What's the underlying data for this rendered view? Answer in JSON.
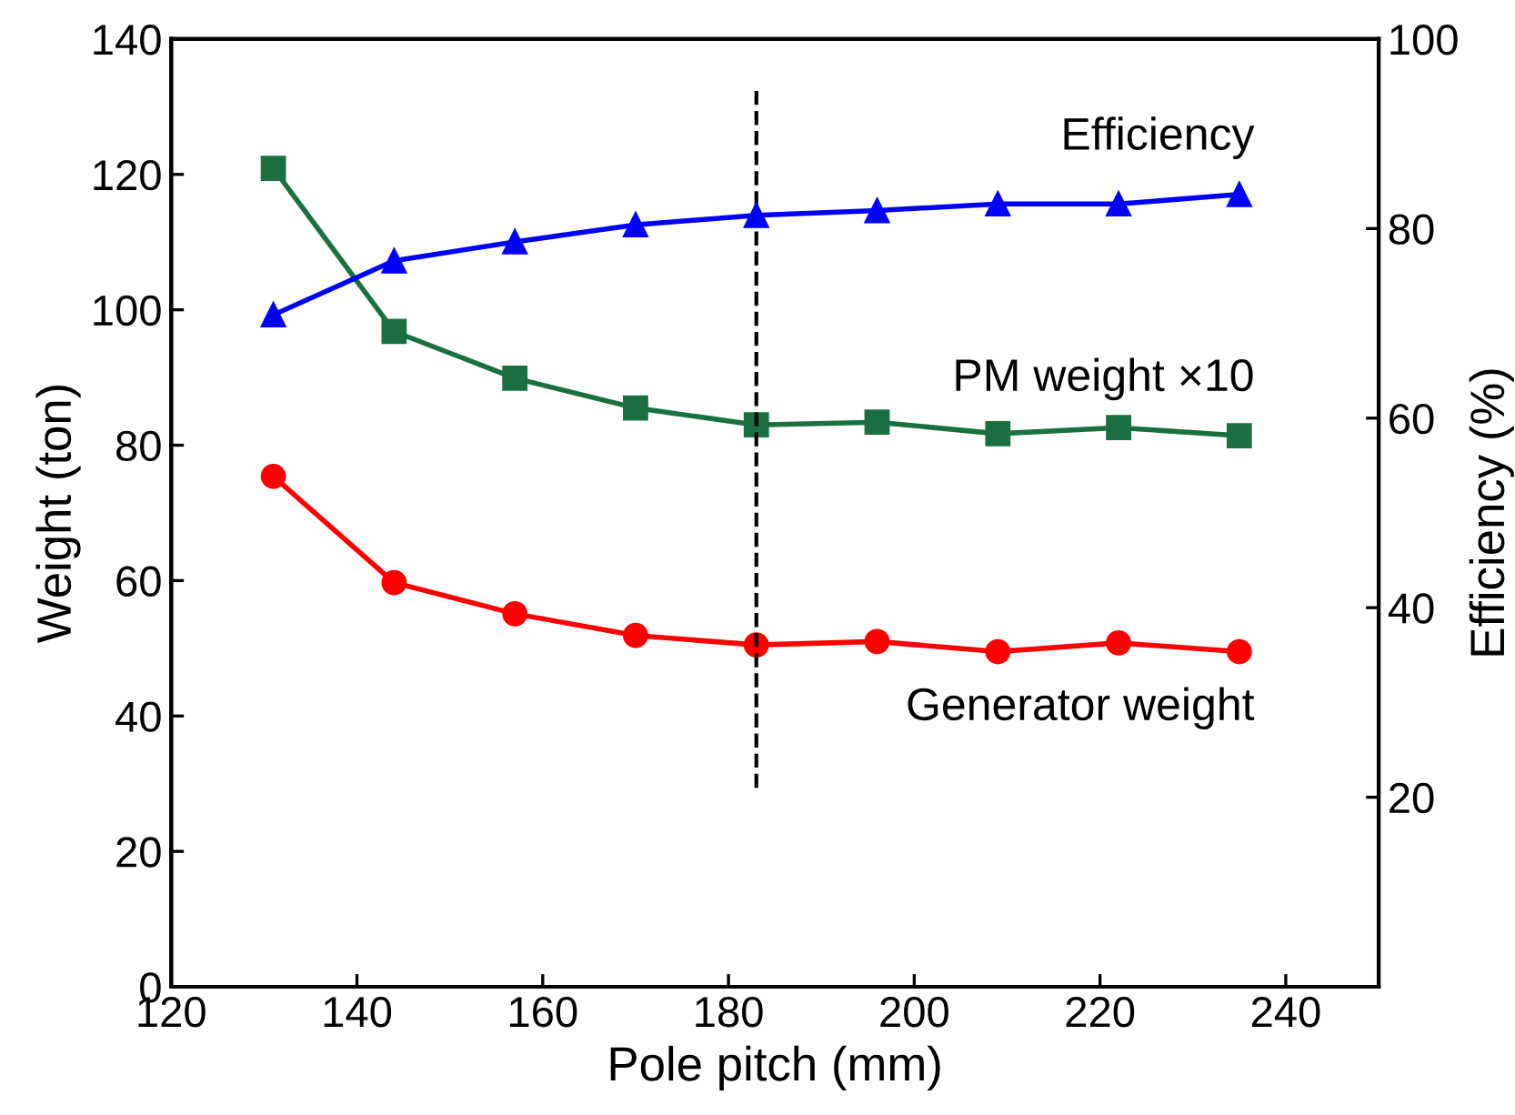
{
  "chart_data": {
    "type": "line",
    "xlabel": "Pole pitch (mm)",
    "ylabel": "Weight (ton)",
    "y2label": "Efficiency (%)",
    "x": [
      131,
      144,
      157,
      170,
      183,
      196,
      209,
      222,
      235
    ],
    "series": [
      {
        "name": "Efficiency",
        "color": "#0000ff",
        "marker": "triangle",
        "axis": "y2",
        "values": [
          70.9,
          76.6,
          78.6,
          80.4,
          81.4,
          81.9,
          82.6,
          82.6,
          83.6
        ]
      },
      {
        "name": "PM weight ×10",
        "color": "#1a7040",
        "marker": "square",
        "values": [
          120.9,
          96.8,
          89.9,
          85.5,
          83.0,
          83.4,
          81.7,
          82.6,
          81.4
        ]
      },
      {
        "name": "Generator weight",
        "color": "#ff0000",
        "marker": "circle",
        "values": [
          75.4,
          59.7,
          55.1,
          51.9,
          50.5,
          51.0,
          49.5,
          50.8,
          49.5
        ]
      }
    ],
    "xlim": [
      120,
      250
    ],
    "xticks": [
      120,
      140,
      160,
      180,
      200,
      220,
      240
    ],
    "ylim": [
      0,
      140
    ],
    "yticks": [
      0,
      20,
      40,
      60,
      80,
      100,
      120,
      140
    ],
    "y2lim": [
      0,
      100
    ],
    "y2ticks": [
      20,
      40,
      60,
      80,
      100
    ],
    "ref_lines": [
      {
        "axis": "x",
        "value": 183,
        "color": "#000000",
        "line_style": "dashed"
      }
    ],
    "grid": false,
    "legend": false,
    "line_style": "solid"
  }
}
